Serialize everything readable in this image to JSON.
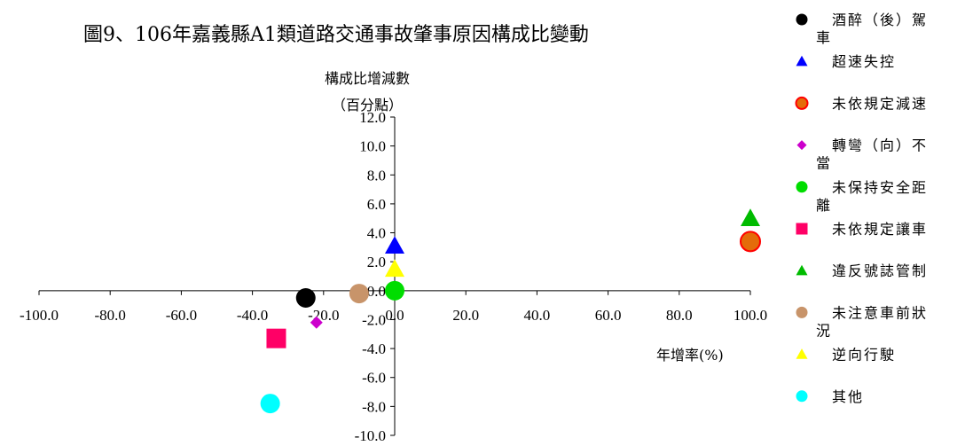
{
  "chart_data": {
    "type": "scatter",
    "title": "圖9、106年嘉義縣A1類道路交通事故肇事原因構成比變動",
    "ylabel_line1": "構成比增減數",
    "ylabel_line2": "（百分點）",
    "xlabel": "年增率(%)",
    "xlim": [
      -100,
      100
    ],
    "ylim": [
      -10,
      12
    ],
    "xticks": [
      -100,
      -80,
      -60,
      -40,
      -20,
      0,
      20,
      40,
      60,
      80,
      100
    ],
    "yticks": [
      12,
      10,
      8,
      6,
      4,
      2,
      0,
      -2,
      -4,
      -6,
      -8,
      -10
    ],
    "xtick_labels": [
      "-100.0",
      "-80.0",
      "-60.0",
      "-40.0",
      "-20.0",
      "0.0",
      "20.0",
      "40.0",
      "60.0",
      "80.0",
      "100.0"
    ],
    "ytick_labels": [
      "12.0",
      "10.0",
      "8.0",
      "6.0",
      "4.0",
      "2.0",
      "0.0",
      "-2.0",
      "-4.0",
      "-6.0",
      "-8.0",
      "-10.0"
    ],
    "legend_position": "right",
    "series": [
      {
        "name": "酒醉（後）駕車",
        "marker": "circle",
        "color": "#000000",
        "x": -25,
        "y": -0.5
      },
      {
        "name": "超速失控",
        "marker": "triangle",
        "color": "#0000ff",
        "x": 0,
        "y": 3.1
      },
      {
        "name": "未依規定減速",
        "marker": "circle-ring",
        "color": "#e46c0a",
        "ring": "#ff0000",
        "x": 100,
        "y": 3.4
      },
      {
        "name": "轉彎（向）不當",
        "marker": "diamond",
        "color": "#cc00cc",
        "x": -22,
        "y": -2.2
      },
      {
        "name": "未保持安全距離",
        "marker": "circle",
        "color": "#00dd00",
        "x": 0,
        "y": 0
      },
      {
        "name": "未依規定讓車",
        "marker": "square",
        "color": "#ff0066",
        "x": -33.3,
        "y": -3.3
      },
      {
        "name": "違反號誌管制",
        "marker": "triangle",
        "color": "#00bb00",
        "x": 100,
        "y": 5.0
      },
      {
        "name": "未注意車前狀況",
        "marker": "circle",
        "color": "#c8946a",
        "x": -10,
        "y": -0.2
      },
      {
        "name": "逆向行駛",
        "marker": "triangle",
        "color": "#ffff00",
        "x": 0,
        "y": 1.5
      },
      {
        "name": "其他",
        "marker": "circle",
        "color": "#00ffff",
        "x": -35,
        "y": -7.8
      }
    ]
  }
}
